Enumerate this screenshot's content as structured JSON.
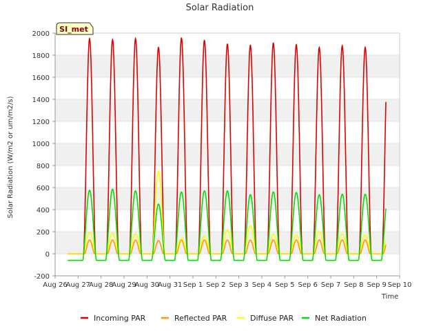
{
  "chart_data": {
    "type": "line",
    "title": "Solar Radiation",
    "xlabel": "Time",
    "ylabel": "Solar Radiation (W/m2 or um/m2/s)",
    "badge": "SI_met",
    "ylim": [
      -200,
      2000
    ],
    "yticks": [
      -200,
      0,
      200,
      400,
      600,
      800,
      1000,
      1200,
      1400,
      1600,
      1800,
      2000
    ],
    "xlim": [
      0,
      15
    ],
    "xtick_labels": [
      "Aug 26",
      "Aug 27",
      "Aug 28",
      "Aug 29",
      "Aug 30",
      "Aug 31",
      "Sep 1",
      "Sep 2",
      "Sep 3",
      "Sep 4",
      "Sep 5",
      "Sep 6",
      "Sep 7",
      "Sep 8",
      "Sep 9",
      "Sep 10"
    ],
    "grid": "horizontal bands",
    "legend_position": "bottom",
    "series": [
      {
        "name": "Incoming PAR",
        "color": "#dd0000",
        "night": 0,
        "peaks": [
          1950,
          1940,
          1950,
          1870,
          1955,
          1935,
          1900,
          1890,
          1910,
          1895,
          1870,
          1885,
          1870,
          1880
        ]
      },
      {
        "name": "Reflected PAR",
        "color": "#ff9900",
        "night": 0,
        "peaks": [
          125,
          125,
          125,
          120,
          125,
          125,
          125,
          125,
          125,
          125,
          125,
          125,
          125,
          125
        ]
      },
      {
        "name": "Diffuse PAR",
        "color": "#ffff00",
        "night": 0,
        "peaks": [
          195,
          185,
          180,
          750,
          140,
          160,
          215,
          255,
          175,
          170,
          205,
          180,
          170,
          160
        ]
      },
      {
        "name": "Net Radiation",
        "color": "#00dd00",
        "night": -60,
        "peaks": [
          575,
          585,
          570,
          450,
          560,
          570,
          570,
          535,
          560,
          555,
          535,
          540,
          540,
          530
        ]
      }
    ]
  }
}
